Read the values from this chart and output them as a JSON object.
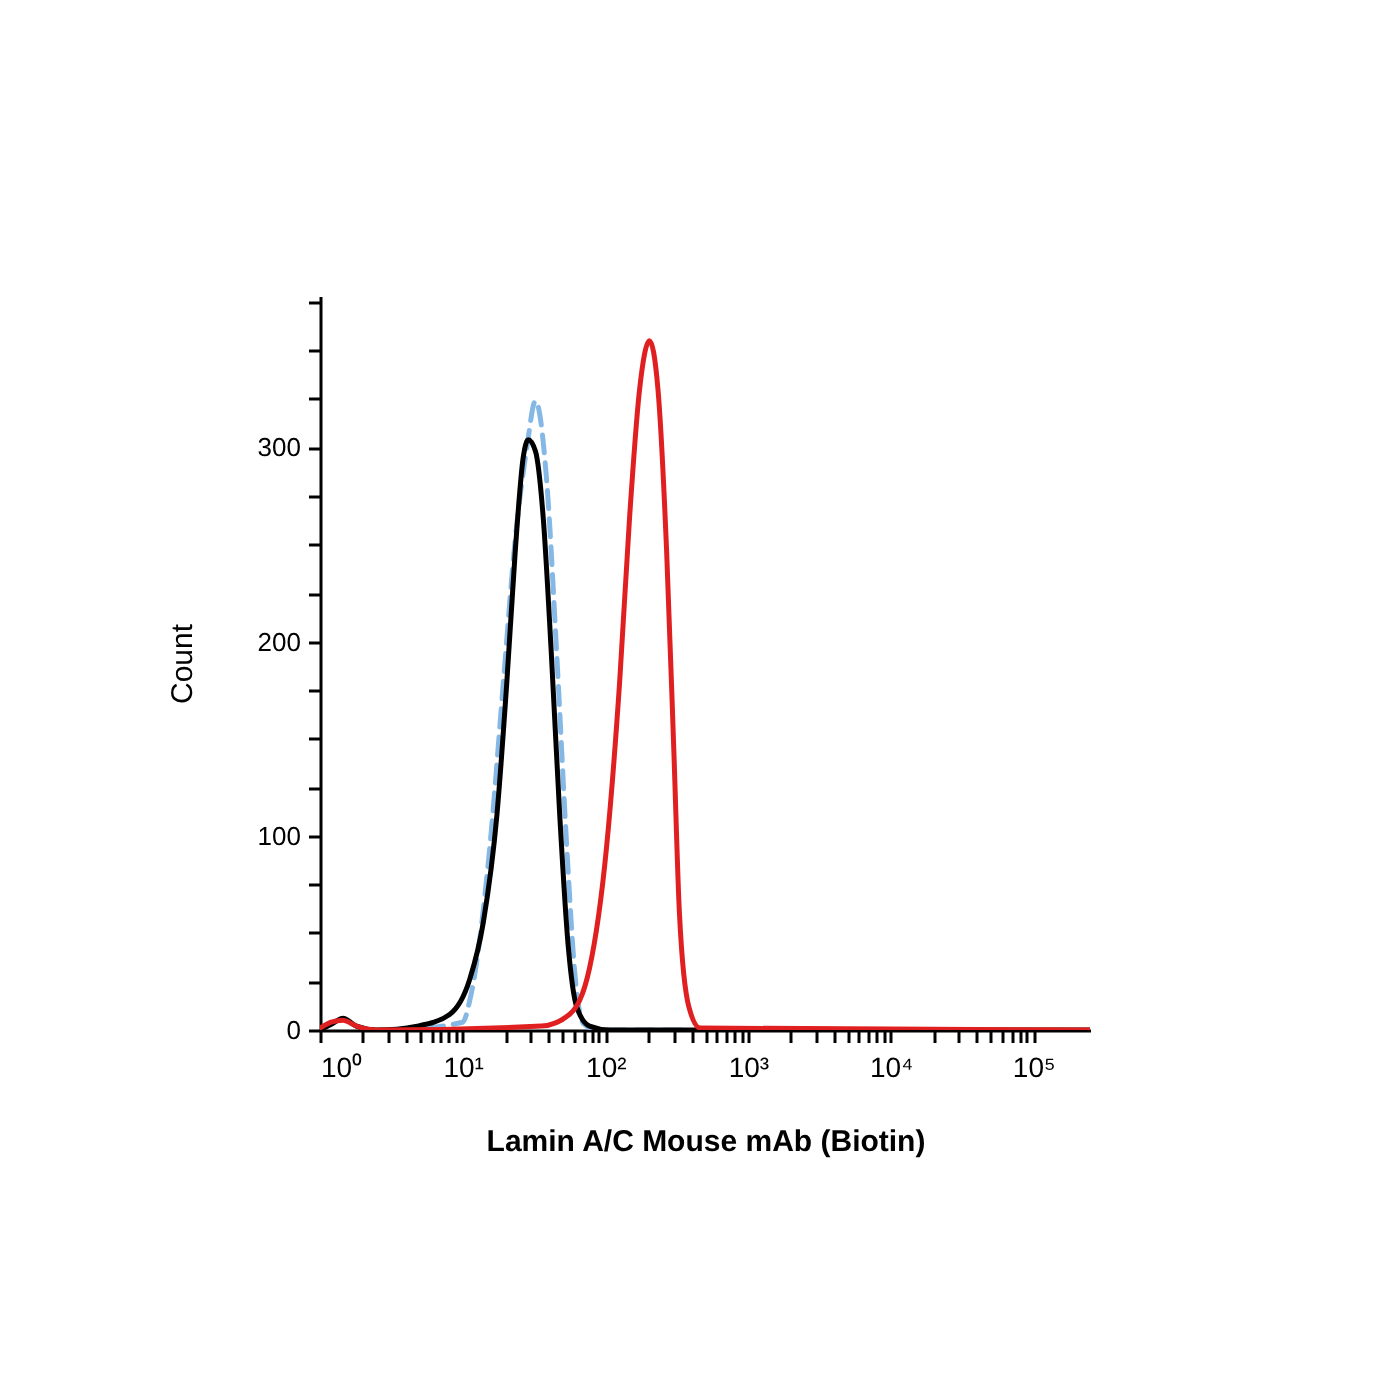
{
  "chart_data": {
    "type": "line",
    "xlabel": "Lamin A/C Mouse mAb (Biotin)",
    "ylabel": "Count",
    "log": "x",
    "grid": false,
    "marker": "none",
    "xlim": [
      1,
      250000
    ],
    "ylim": [
      0,
      378
    ],
    "xticks": [
      {
        "value": 1,
        "label": "10⁰"
      },
      {
        "value": 2,
        "label": null
      },
      {
        "value": 3,
        "label": null
      },
      {
        "value": 4,
        "label": null
      },
      {
        "value": 5,
        "label": null
      },
      {
        "value": 6,
        "label": null
      },
      {
        "value": 7,
        "label": null
      },
      {
        "value": 8,
        "label": null
      },
      {
        "value": 9,
        "label": null
      },
      {
        "value": 10,
        "label": "10¹"
      },
      {
        "value": 20,
        "label": null
      },
      {
        "value": 30,
        "label": null
      },
      {
        "value": 40,
        "label": null
      },
      {
        "value": 50,
        "label": null
      },
      {
        "value": 60,
        "label": null
      },
      {
        "value": 70,
        "label": null
      },
      {
        "value": 80,
        "label": null
      },
      {
        "value": 90,
        "label": null
      },
      {
        "value": 100,
        "label": "10²"
      },
      {
        "value": 200,
        "label": null
      },
      {
        "value": 300,
        "label": null
      },
      {
        "value": 400,
        "label": null
      },
      {
        "value": 500,
        "label": null
      },
      {
        "value": 600,
        "label": null
      },
      {
        "value": 700,
        "label": null
      },
      {
        "value": 800,
        "label": null
      },
      {
        "value": 900,
        "label": null
      },
      {
        "value": 1000,
        "label": "10³"
      },
      {
        "value": 2000,
        "label": null
      },
      {
        "value": 3000,
        "label": null
      },
      {
        "value": 4000,
        "label": null
      },
      {
        "value": 5000,
        "label": null
      },
      {
        "value": 6000,
        "label": null
      },
      {
        "value": 7000,
        "label": null
      },
      {
        "value": 8000,
        "label": null
      },
      {
        "value": 9000,
        "label": null
      },
      {
        "value": 10000,
        "label": "10⁴"
      },
      {
        "value": 20000,
        "label": null
      },
      {
        "value": 30000,
        "label": null
      },
      {
        "value": 40000,
        "label": null
      },
      {
        "value": 50000,
        "label": null
      },
      {
        "value": 60000,
        "label": null
      },
      {
        "value": 70000,
        "label": null
      },
      {
        "value": 80000,
        "label": null
      },
      {
        "value": 90000,
        "label": null
      },
      {
        "value": 100000,
        "label": "10⁵"
      }
    ],
    "yticks": [
      0,
      {
        "value": 25,
        "label": null
      },
      {
        "value": 50,
        "label": null
      },
      {
        "value": 75,
        "label": null
      },
      100,
      {
        "value": 125,
        "label": null
      },
      {
        "value": 150,
        "label": null
      },
      {
        "value": 175,
        "label": null
      },
      200,
      {
        "value": 225,
        "label": null
      },
      {
        "value": 250,
        "label": null
      },
      {
        "value": 275,
        "label": null
      },
      300,
      {
        "value": 325,
        "label": null
      },
      {
        "value": 350,
        "label": null
      },
      {
        "value": 375,
        "label": null
      }
    ],
    "series": [
      {
        "color": "#86b8e6",
        "line_style": "dashed",
        "x": [
          3.5,
          10,
          11.2,
          15.5,
          19.3,
          23.4,
          28.2,
          32.4,
          38.9,
          45.7,
          53.7,
          61.7,
          70.8,
          89,
          398
        ],
        "values": [
          0,
          4,
          15,
          94,
          179,
          253,
          300,
          324,
          282,
          193,
          94,
          26,
          3,
          0,
          0
        ]
      },
      {
        "color": "#000000",
        "line_style": "solid",
        "x": [
          1,
          1.2,
          1.45,
          1.8,
          2.5,
          4.8,
          8.1,
          11.2,
          14,
          17.4,
          20.4,
          23.4,
          26.6,
          28.8,
          32.4,
          36.7,
          41.7,
          47.9,
          55,
          63,
          77.6,
          107,
          250000
        ],
        "values": [
          0,
          3,
          6,
          2,
          0,
          2,
          8,
          26,
          56,
          111,
          179,
          247,
          295,
          304,
          298,
          264,
          196,
          111,
          43,
          12,
          2,
          0,
          0
        ]
      },
      {
        "color": "#e02020",
        "line_style": "solid",
        "x": [
          1,
          1.2,
          1.45,
          1.8,
          2.5,
          35.5,
          56,
          77.6,
          102,
          126,
          148,
          174,
          204,
          234,
          269,
          302,
          331,
          385,
          462,
          250000
        ],
        "values": [
          1,
          4,
          5,
          2,
          0,
          2,
          8,
          32,
          94,
          179,
          264,
          330,
          355,
          330,
          247,
          145,
          60,
          12,
          1,
          0
        ]
      }
    ]
  }
}
